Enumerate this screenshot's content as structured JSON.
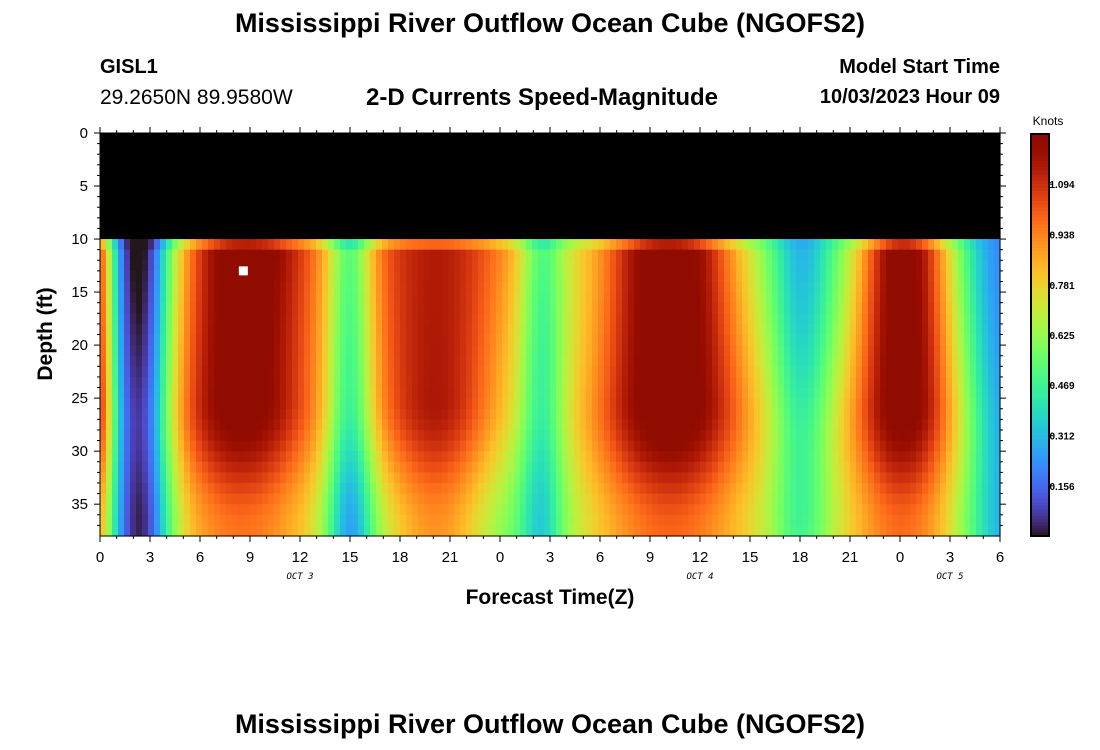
{
  "header": {
    "title": "Mississippi River Outflow Ocean Cube (NGOFS2)",
    "station": "GISL1",
    "coordinates": "29.2650N  89.9580W",
    "subtitle": "2-D Currents Speed-Magnitude",
    "model_start_label": "Model Start Time",
    "model_start_value": "10/03/2023 Hour 09"
  },
  "footer": {
    "title": "Mississippi River Outflow Ocean Cube (NGOFS2)"
  },
  "chart_data": {
    "type": "heatmap",
    "xlabel": "Forecast Time(Z)",
    "ylabel": "Depth (ft)",
    "x_range_hours": [
      0,
      54
    ],
    "y_range": [
      0,
      38
    ],
    "y_inverted": true,
    "x_tick_labels": [
      "0",
      "3",
      "6",
      "9",
      "12",
      "15",
      "18",
      "21",
      "0",
      "3",
      "6",
      "9",
      "12",
      "15",
      "18",
      "21",
      "0",
      "3",
      "6"
    ],
    "y_tick_labels": [
      "0",
      "5",
      "10",
      "15",
      "20",
      "25",
      "30",
      "35"
    ],
    "y_tick_values": [
      0,
      5,
      10,
      15,
      20,
      25,
      30,
      35
    ],
    "date_labels": [
      {
        "text": "OCT 3",
        "hour": 12
      },
      {
        "text": "OCT 4",
        "hour": 36
      },
      {
        "text": "OCT 5",
        "hour": 51
      }
    ],
    "colorbar": {
      "unit": "Knots",
      "min": 0,
      "max": 1.25,
      "tick_labels": [
        "1.094",
        "0.938",
        "0.781",
        "0.625",
        "0.469",
        "0.312",
        "0.156"
      ],
      "tick_values": [
        1.094,
        0.938,
        0.781,
        0.625,
        0.469,
        0.312,
        0.156
      ],
      "colormap": "turbo"
    },
    "marker": {
      "hour": 8.6,
      "depth": 13
    },
    "cells_description": "speed magnitude on a forecast-hour by depth grid; alternating low-speed bands near hours 2.5, 15, 26.5 and 42 and high-speed cores below 10 ft near hours 8.5, 20, 34 and 48"
  }
}
